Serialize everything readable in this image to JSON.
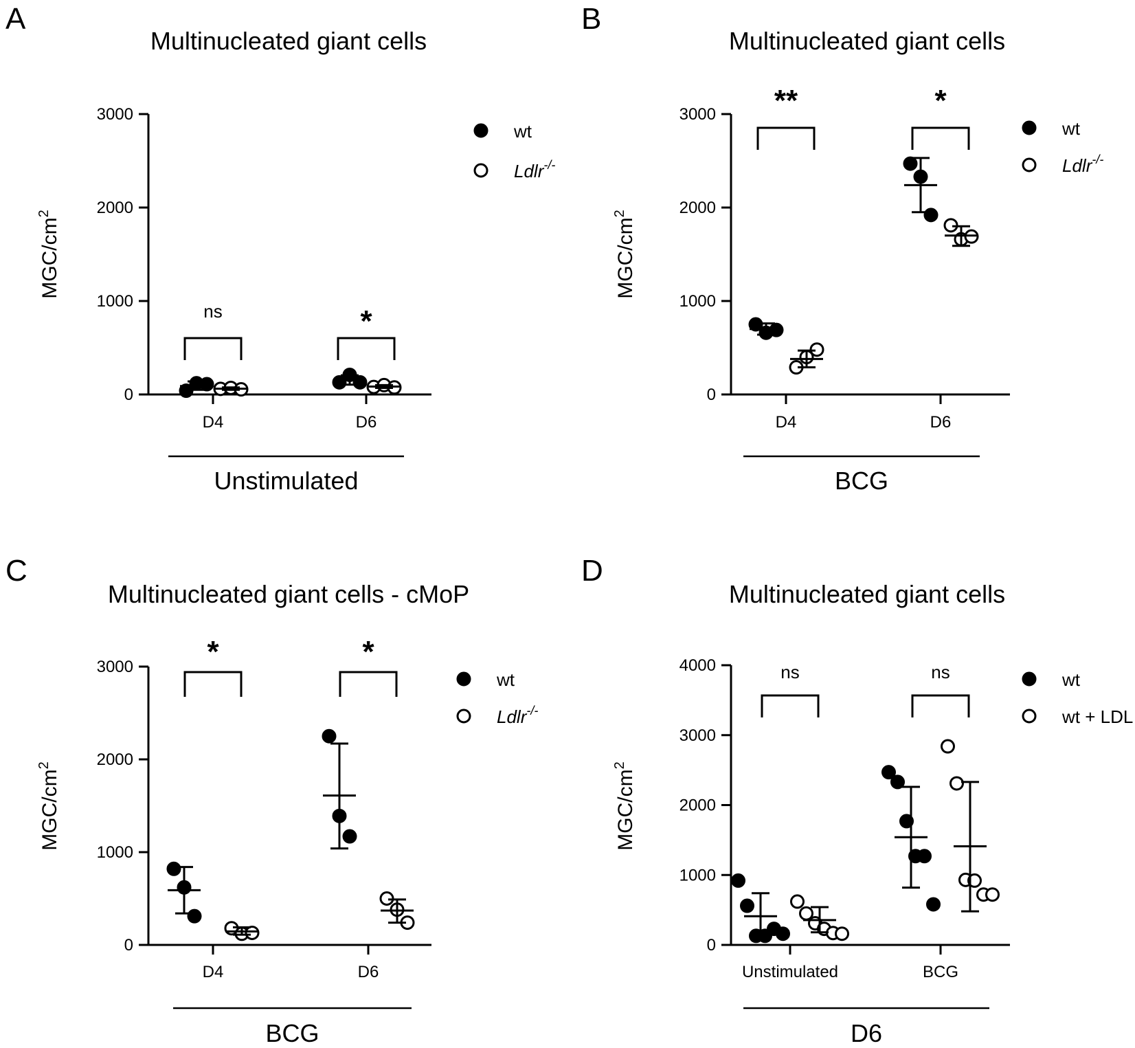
{
  "chart_data": [
    {
      "panel": "A",
      "type": "scatter",
      "title": "Multinucleated giant cells",
      "ylabel": "MGC/cm",
      "ylabel_sup": "2",
      "ylim": [
        0,
        3000
      ],
      "yticks": [
        0,
        1000,
        2000,
        3000
      ],
      "categories": [
        "D4",
        "D6"
      ],
      "group_label": "Unstimulated",
      "legend": [
        {
          "label": "wt",
          "sup": "",
          "italic": false,
          "filled": true
        },
        {
          "label": "Ldlr",
          "sup": "-/-",
          "italic": true,
          "filled": false
        }
      ],
      "series": [
        {
          "name": "wt",
          "filled": true,
          "points": [
            [
              40,
              120,
              110
            ],
            [
              130,
              210,
              130
            ]
          ],
          "mean": [
            90,
            157
          ],
          "sd": [
            [
              50,
              140
            ],
            [
              105,
              205
            ]
          ]
        },
        {
          "name": "Ldlr-/-",
          "filled": false,
          "points": [
            [
              60,
              70,
              55
            ],
            [
              80,
              100,
              75
            ]
          ],
          "mean": [
            62,
            85
          ],
          "sd": [
            [
              50,
              75
            ],
            [
              70,
              100
            ]
          ]
        }
      ],
      "significance": [
        "ns",
        "*"
      ]
    },
    {
      "panel": "B",
      "type": "scatter",
      "title": "Multinucleated giant cells",
      "ylabel": "MGC/cm",
      "ylabel_sup": "2",
      "ylim": [
        0,
        3000
      ],
      "yticks": [
        0,
        1000,
        2000,
        3000
      ],
      "categories": [
        "D4",
        "D6"
      ],
      "group_label": "BCG",
      "legend": [
        {
          "label": "wt",
          "sup": "",
          "italic": false,
          "filled": true
        },
        {
          "label": "Ldlr",
          "sup": "-/-",
          "italic": true,
          "filled": false
        }
      ],
      "series": [
        {
          "name": "wt",
          "filled": true,
          "points": [
            [
              750,
              660,
              690
            ],
            [
              2470,
              2330,
              1920
            ]
          ],
          "mean": [
            700,
            2240
          ],
          "sd": [
            [
              640,
              760
            ],
            [
              1950,
              2530
            ]
          ]
        },
        {
          "name": "Ldlr-/-",
          "filled": false,
          "points": [
            [
              290,
              400,
              480
            ],
            [
              1810,
              1660,
              1690
            ]
          ],
          "mean": [
            380,
            1700
          ],
          "sd": [
            [
              290,
              470
            ],
            [
              1590,
              1800
            ]
          ]
        }
      ],
      "significance": [
        "**",
        "*"
      ]
    },
    {
      "panel": "C",
      "type": "scatter",
      "title": "Multinucleated giant cells - cMoP",
      "ylabel": "MGC/cm",
      "ylabel_sup": "2",
      "ylim": [
        0,
        3000
      ],
      "yticks": [
        0,
        1000,
        2000,
        3000
      ],
      "categories": [
        "D4",
        "D6"
      ],
      "group_label": "BCG",
      "legend": [
        {
          "label": "wt",
          "sup": "",
          "italic": false,
          "filled": true
        },
        {
          "label": "Ldlr",
          "sup": "-/-",
          "italic": true,
          "filled": false
        }
      ],
      "series": [
        {
          "name": "wt",
          "filled": true,
          "points": [
            [
              820,
              620,
              310
            ],
            [
              2250,
              1390,
              1170
            ]
          ],
          "mean": [
            590,
            1610
          ],
          "sd": [
            [
              340,
              840
            ],
            [
              1040,
              2170
            ]
          ]
        },
        {
          "name": "Ldlr-/-",
          "filled": false,
          "points": [
            [
              180,
              120,
              130
            ],
            [
              500,
              380,
              240
            ]
          ],
          "mean": [
            145,
            370
          ],
          "sd": [
            [
              110,
              190
            ],
            [
              240,
              490
            ]
          ]
        }
      ],
      "significance": [
        "*",
        "*"
      ]
    },
    {
      "panel": "D",
      "type": "scatter",
      "title": "Multinucleated giant cells",
      "ylabel": "MGC/cm",
      "ylabel_sup": "2",
      "ylim": [
        0,
        4000
      ],
      "yticks": [
        0,
        1000,
        2000,
        3000,
        4000
      ],
      "categories": [
        "Unstimulated",
        "BCG"
      ],
      "group_label": "D6",
      "legend": [
        {
          "label": "wt",
          "sup": "",
          "italic": false,
          "filled": true
        },
        {
          "label": "wt + LDL",
          "sup": "",
          "italic": false,
          "filled": false
        }
      ],
      "series": [
        {
          "name": "wt",
          "filled": true,
          "points": [
            [
              920,
              560,
              130,
              130,
              230,
              160
            ],
            [
              2470,
              2330,
              1770,
              1270,
              1270,
              580
            ]
          ],
          "mean": [
            410,
            1540
          ],
          "sd": [
            [
              90,
              740
            ],
            [
              820,
              2260
            ]
          ]
        },
        {
          "name": "wt + LDL",
          "filled": false,
          "points": [
            [
              620,
              450,
              310,
              230,
              170,
              160
            ],
            [
              2840,
              2310,
              930,
              920,
              720,
              720
            ]
          ],
          "mean": [
            355,
            1410
          ],
          "sd": [
            [
              180,
              540
            ],
            [
              480,
              2330
            ]
          ]
        }
      ],
      "significance": [
        "ns",
        "ns"
      ]
    }
  ]
}
